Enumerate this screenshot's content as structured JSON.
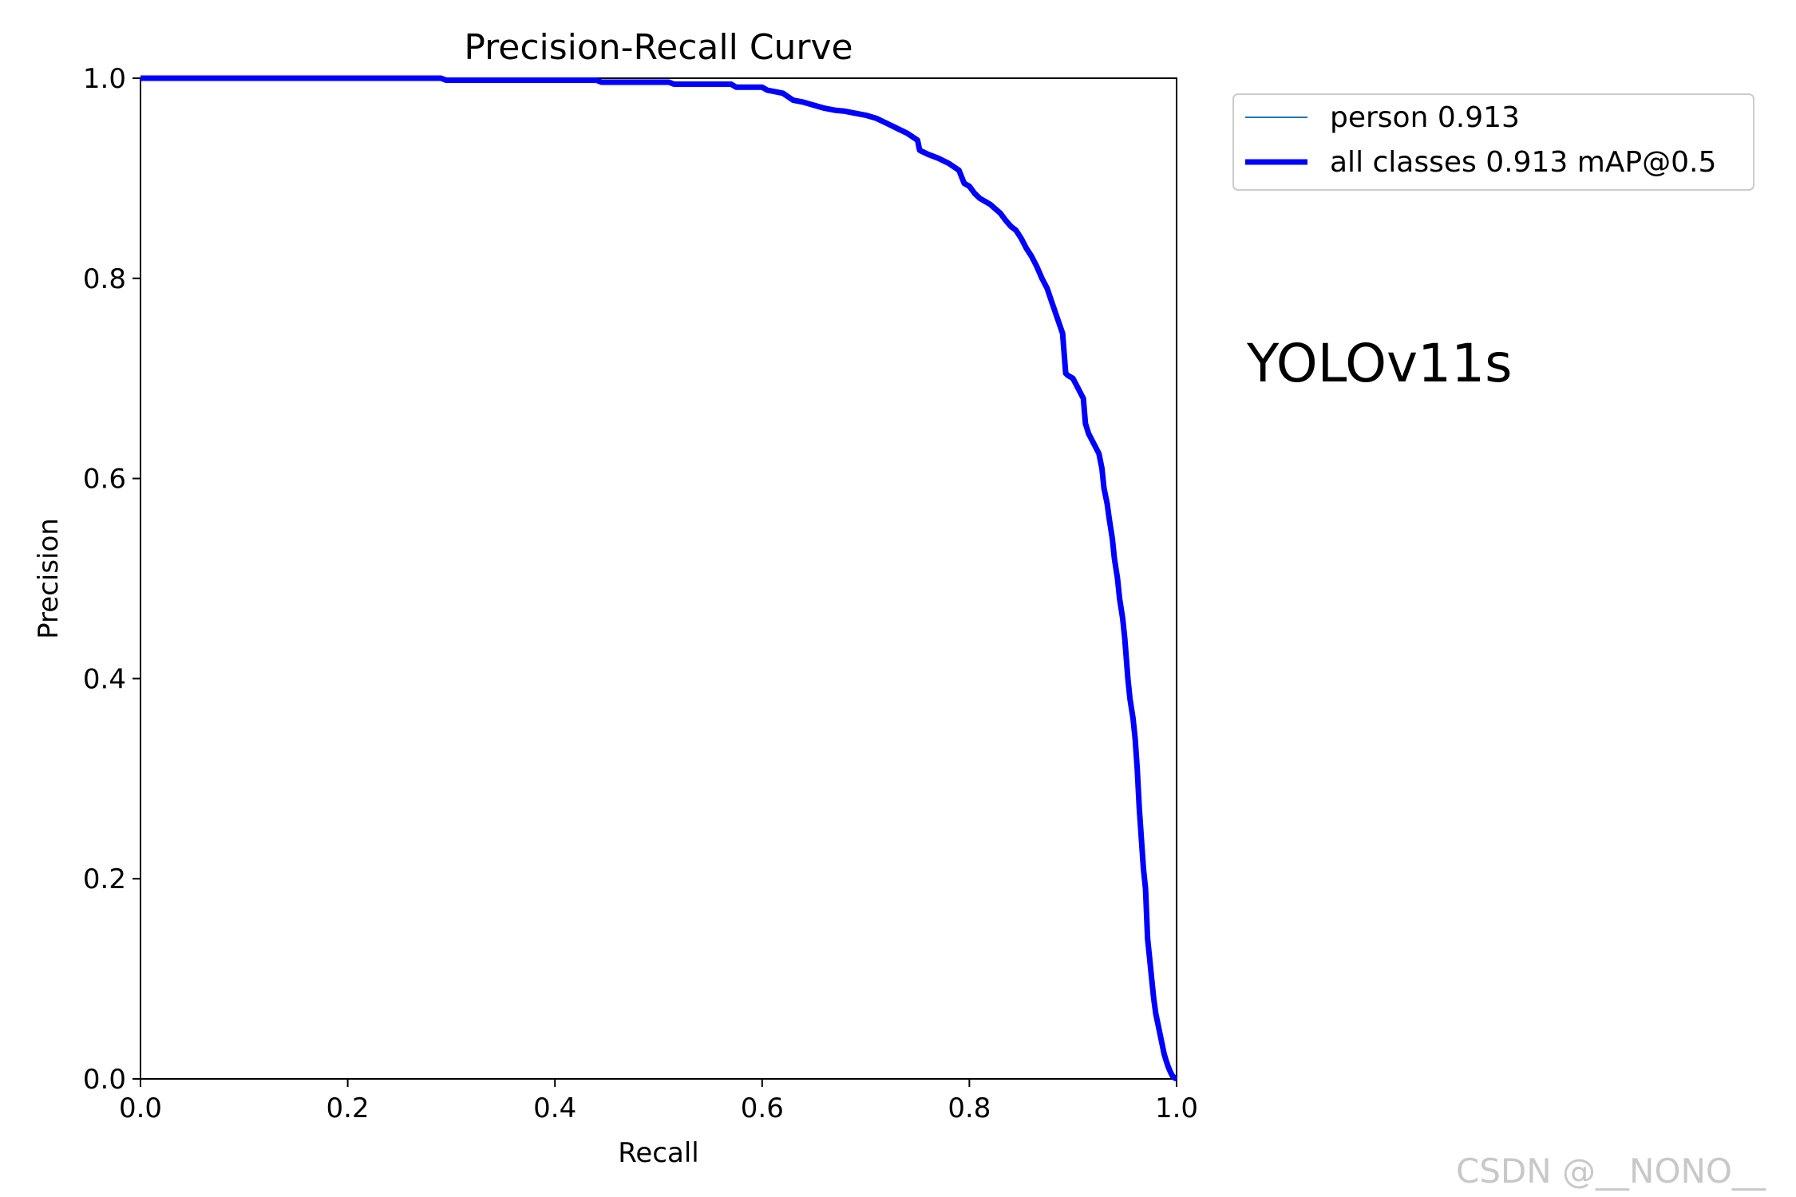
{
  "chart_data": {
    "type": "line",
    "title": "Precision-Recall Curve",
    "xlabel": "Recall",
    "ylabel": "Precision",
    "xlim": [
      0,
      1
    ],
    "ylim": [
      0,
      1
    ],
    "xticks": [
      "0.0",
      "0.2",
      "0.4",
      "0.6",
      "0.8",
      "1.0"
    ],
    "yticks": [
      "0.0",
      "0.2",
      "0.4",
      "0.6",
      "0.8",
      "1.0"
    ],
    "grid": false,
    "legend_position": "outside-top-right",
    "series": [
      {
        "name": "person 0.913",
        "color": "#1f77b4",
        "x": [
          0,
          0.29,
          0.295,
          0.44,
          0.445,
          0.51,
          0.515,
          0.57,
          0.575,
          0.6,
          0.605,
          0.62,
          0.63,
          0.64,
          0.65,
          0.66,
          0.67,
          0.68,
          0.69,
          0.7,
          0.71,
          0.72,
          0.73,
          0.74,
          0.75,
          0.752,
          0.76,
          0.77,
          0.78,
          0.79,
          0.795,
          0.8,
          0.805,
          0.81,
          0.82,
          0.83,
          0.835,
          0.84,
          0.845,
          0.85,
          0.855,
          0.86,
          0.865,
          0.87,
          0.875,
          0.88,
          0.885,
          0.89,
          0.893,
          0.895,
          0.9,
          0.905,
          0.91,
          0.912,
          0.915,
          0.92,
          0.925,
          0.928,
          0.93,
          0.933,
          0.935,
          0.938,
          0.94,
          0.943,
          0.945,
          0.948,
          0.95,
          0.953,
          0.955,
          0.958,
          0.96,
          0.962,
          0.964,
          0.966,
          0.968,
          0.97,
          0.972,
          0.974,
          0.976,
          0.978,
          0.98,
          0.982,
          0.984,
          0.986,
          0.988,
          0.99,
          0.992,
          0.994,
          0.996,
          0.998,
          1.0
        ],
        "y": [
          1.0,
          1.0,
          0.998,
          0.998,
          0.996,
          0.996,
          0.994,
          0.994,
          0.991,
          0.991,
          0.988,
          0.985,
          0.978,
          0.976,
          0.973,
          0.97,
          0.968,
          0.967,
          0.965,
          0.963,
          0.96,
          0.955,
          0.95,
          0.945,
          0.938,
          0.928,
          0.924,
          0.92,
          0.915,
          0.908,
          0.895,
          0.892,
          0.885,
          0.88,
          0.874,
          0.865,
          0.858,
          0.852,
          0.848,
          0.84,
          0.83,
          0.822,
          0.812,
          0.8,
          0.79,
          0.775,
          0.76,
          0.745,
          0.705,
          0.703,
          0.7,
          0.69,
          0.68,
          0.655,
          0.645,
          0.635,
          0.625,
          0.61,
          0.59,
          0.575,
          0.56,
          0.54,
          0.52,
          0.5,
          0.48,
          0.46,
          0.44,
          0.4,
          0.38,
          0.36,
          0.34,
          0.31,
          0.27,
          0.24,
          0.21,
          0.19,
          0.14,
          0.12,
          0.1,
          0.08,
          0.065,
          0.055,
          0.045,
          0.035,
          0.025,
          0.018,
          0.012,
          0.007,
          0.003,
          0.001,
          0.0
        ]
      },
      {
        "name": "all classes 0.913 mAP@0.5",
        "color": "#0000ff",
        "x": [
          0,
          0.29,
          0.295,
          0.44,
          0.445,
          0.51,
          0.515,
          0.57,
          0.575,
          0.6,
          0.605,
          0.62,
          0.63,
          0.64,
          0.65,
          0.66,
          0.67,
          0.68,
          0.69,
          0.7,
          0.71,
          0.72,
          0.73,
          0.74,
          0.75,
          0.752,
          0.76,
          0.77,
          0.78,
          0.79,
          0.795,
          0.8,
          0.805,
          0.81,
          0.82,
          0.83,
          0.835,
          0.84,
          0.845,
          0.85,
          0.855,
          0.86,
          0.865,
          0.87,
          0.875,
          0.88,
          0.885,
          0.89,
          0.893,
          0.895,
          0.9,
          0.905,
          0.91,
          0.912,
          0.915,
          0.92,
          0.925,
          0.928,
          0.93,
          0.933,
          0.935,
          0.938,
          0.94,
          0.943,
          0.945,
          0.948,
          0.95,
          0.953,
          0.955,
          0.958,
          0.96,
          0.962,
          0.964,
          0.966,
          0.968,
          0.97,
          0.972,
          0.974,
          0.976,
          0.978,
          0.98,
          0.982,
          0.984,
          0.986,
          0.988,
          0.99,
          0.992,
          0.994,
          0.996,
          0.998,
          1.0
        ],
        "y": [
          1.0,
          1.0,
          0.998,
          0.998,
          0.996,
          0.996,
          0.994,
          0.994,
          0.991,
          0.991,
          0.988,
          0.985,
          0.978,
          0.976,
          0.973,
          0.97,
          0.968,
          0.967,
          0.965,
          0.963,
          0.96,
          0.955,
          0.95,
          0.945,
          0.938,
          0.928,
          0.924,
          0.92,
          0.915,
          0.908,
          0.895,
          0.892,
          0.885,
          0.88,
          0.874,
          0.865,
          0.858,
          0.852,
          0.848,
          0.84,
          0.83,
          0.822,
          0.812,
          0.8,
          0.79,
          0.775,
          0.76,
          0.745,
          0.705,
          0.703,
          0.7,
          0.69,
          0.68,
          0.655,
          0.645,
          0.635,
          0.625,
          0.61,
          0.59,
          0.575,
          0.56,
          0.54,
          0.52,
          0.5,
          0.48,
          0.46,
          0.44,
          0.4,
          0.38,
          0.36,
          0.34,
          0.31,
          0.27,
          0.24,
          0.21,
          0.19,
          0.14,
          0.12,
          0.1,
          0.08,
          0.065,
          0.055,
          0.045,
          0.035,
          0.025,
          0.018,
          0.012,
          0.007,
          0.003,
          0.001,
          0.0
        ]
      }
    ],
    "annotations": [
      "YOLOv11s"
    ]
  },
  "watermark": "CSDN @__NONO__"
}
